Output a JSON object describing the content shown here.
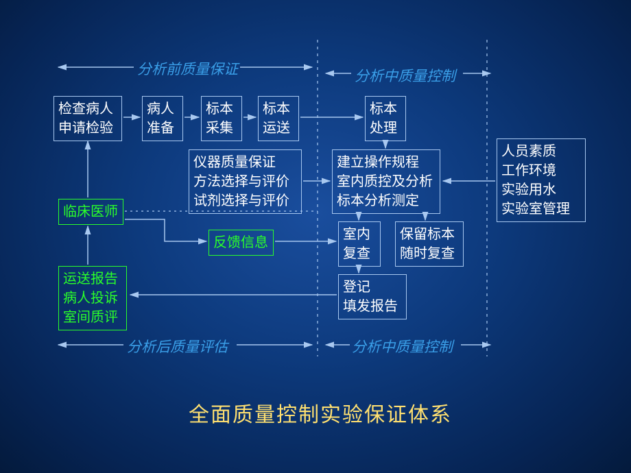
{
  "type": "flowchart",
  "title": "全面质量控制实验保证体系",
  "section_labels": {
    "top_left": "分析前质量保证",
    "top_right": "分析中质量控制",
    "bottom_left": "分析后质量评估",
    "bottom_right": "分析中质量控制"
  },
  "colors": {
    "background_center": "#1a4e9e",
    "background_edge": "#041a3c",
    "box_border": "#a8c8f0",
    "box_text": "#ffffff",
    "green": "#2aff2a",
    "section_text": "#3a9fe8",
    "title_text": "#ffe070",
    "arrow": "#a8c8f0"
  },
  "nodes": {
    "check_patient": "检查病人\n申请检验",
    "patient_prep": "病人\n准备",
    "sample_collect": "标本\n采集",
    "sample_transport": "标本\n运送",
    "sample_process": "标本\n处理",
    "instrument_qa": "仪器质量保证\n方法选择与评价\n试剂选择与评价",
    "establish_sop": "建立操作规程\n室内质控及分析\n标本分析测定",
    "personnel": "人员素质\n工作环境\n实验用水\n实验室管理",
    "clinician": "临床医师",
    "feedback": "反馈信息",
    "indoor_review": "室内\n复查",
    "retain_sample": "保留标本\n随时复查",
    "register": "登记\n填发报告",
    "delivery_report": "运送报告\n病人投诉\n室间质评"
  },
  "layout": {
    "pos": {
      "check_patient": [
        78,
        140,
        100,
        62
      ],
      "patient_prep": [
        207,
        140,
        60,
        62
      ],
      "sample_collect": [
        293,
        140,
        60,
        62
      ],
      "sample_transport": [
        376,
        140,
        60,
        62
      ],
      "sample_process": [
        532,
        140,
        60,
        62
      ],
      "instrument_qa": [
        275,
        218,
        165,
        95
      ],
      "establish_sop": [
        484,
        218,
        158,
        95
      ],
      "personnel": [
        724,
        202,
        130,
        122
      ],
      "clinician": [
        85,
        290,
        95,
        36
      ],
      "feedback": [
        304,
        335,
        95,
        36
      ],
      "indoor_review": [
        493,
        323,
        62,
        62
      ],
      "retain_sample": [
        576,
        323,
        100,
        62
      ],
      "register": [
        493,
        400,
        100,
        62
      ],
      "delivery_report": [
        85,
        388,
        100,
        92
      ]
    }
  }
}
